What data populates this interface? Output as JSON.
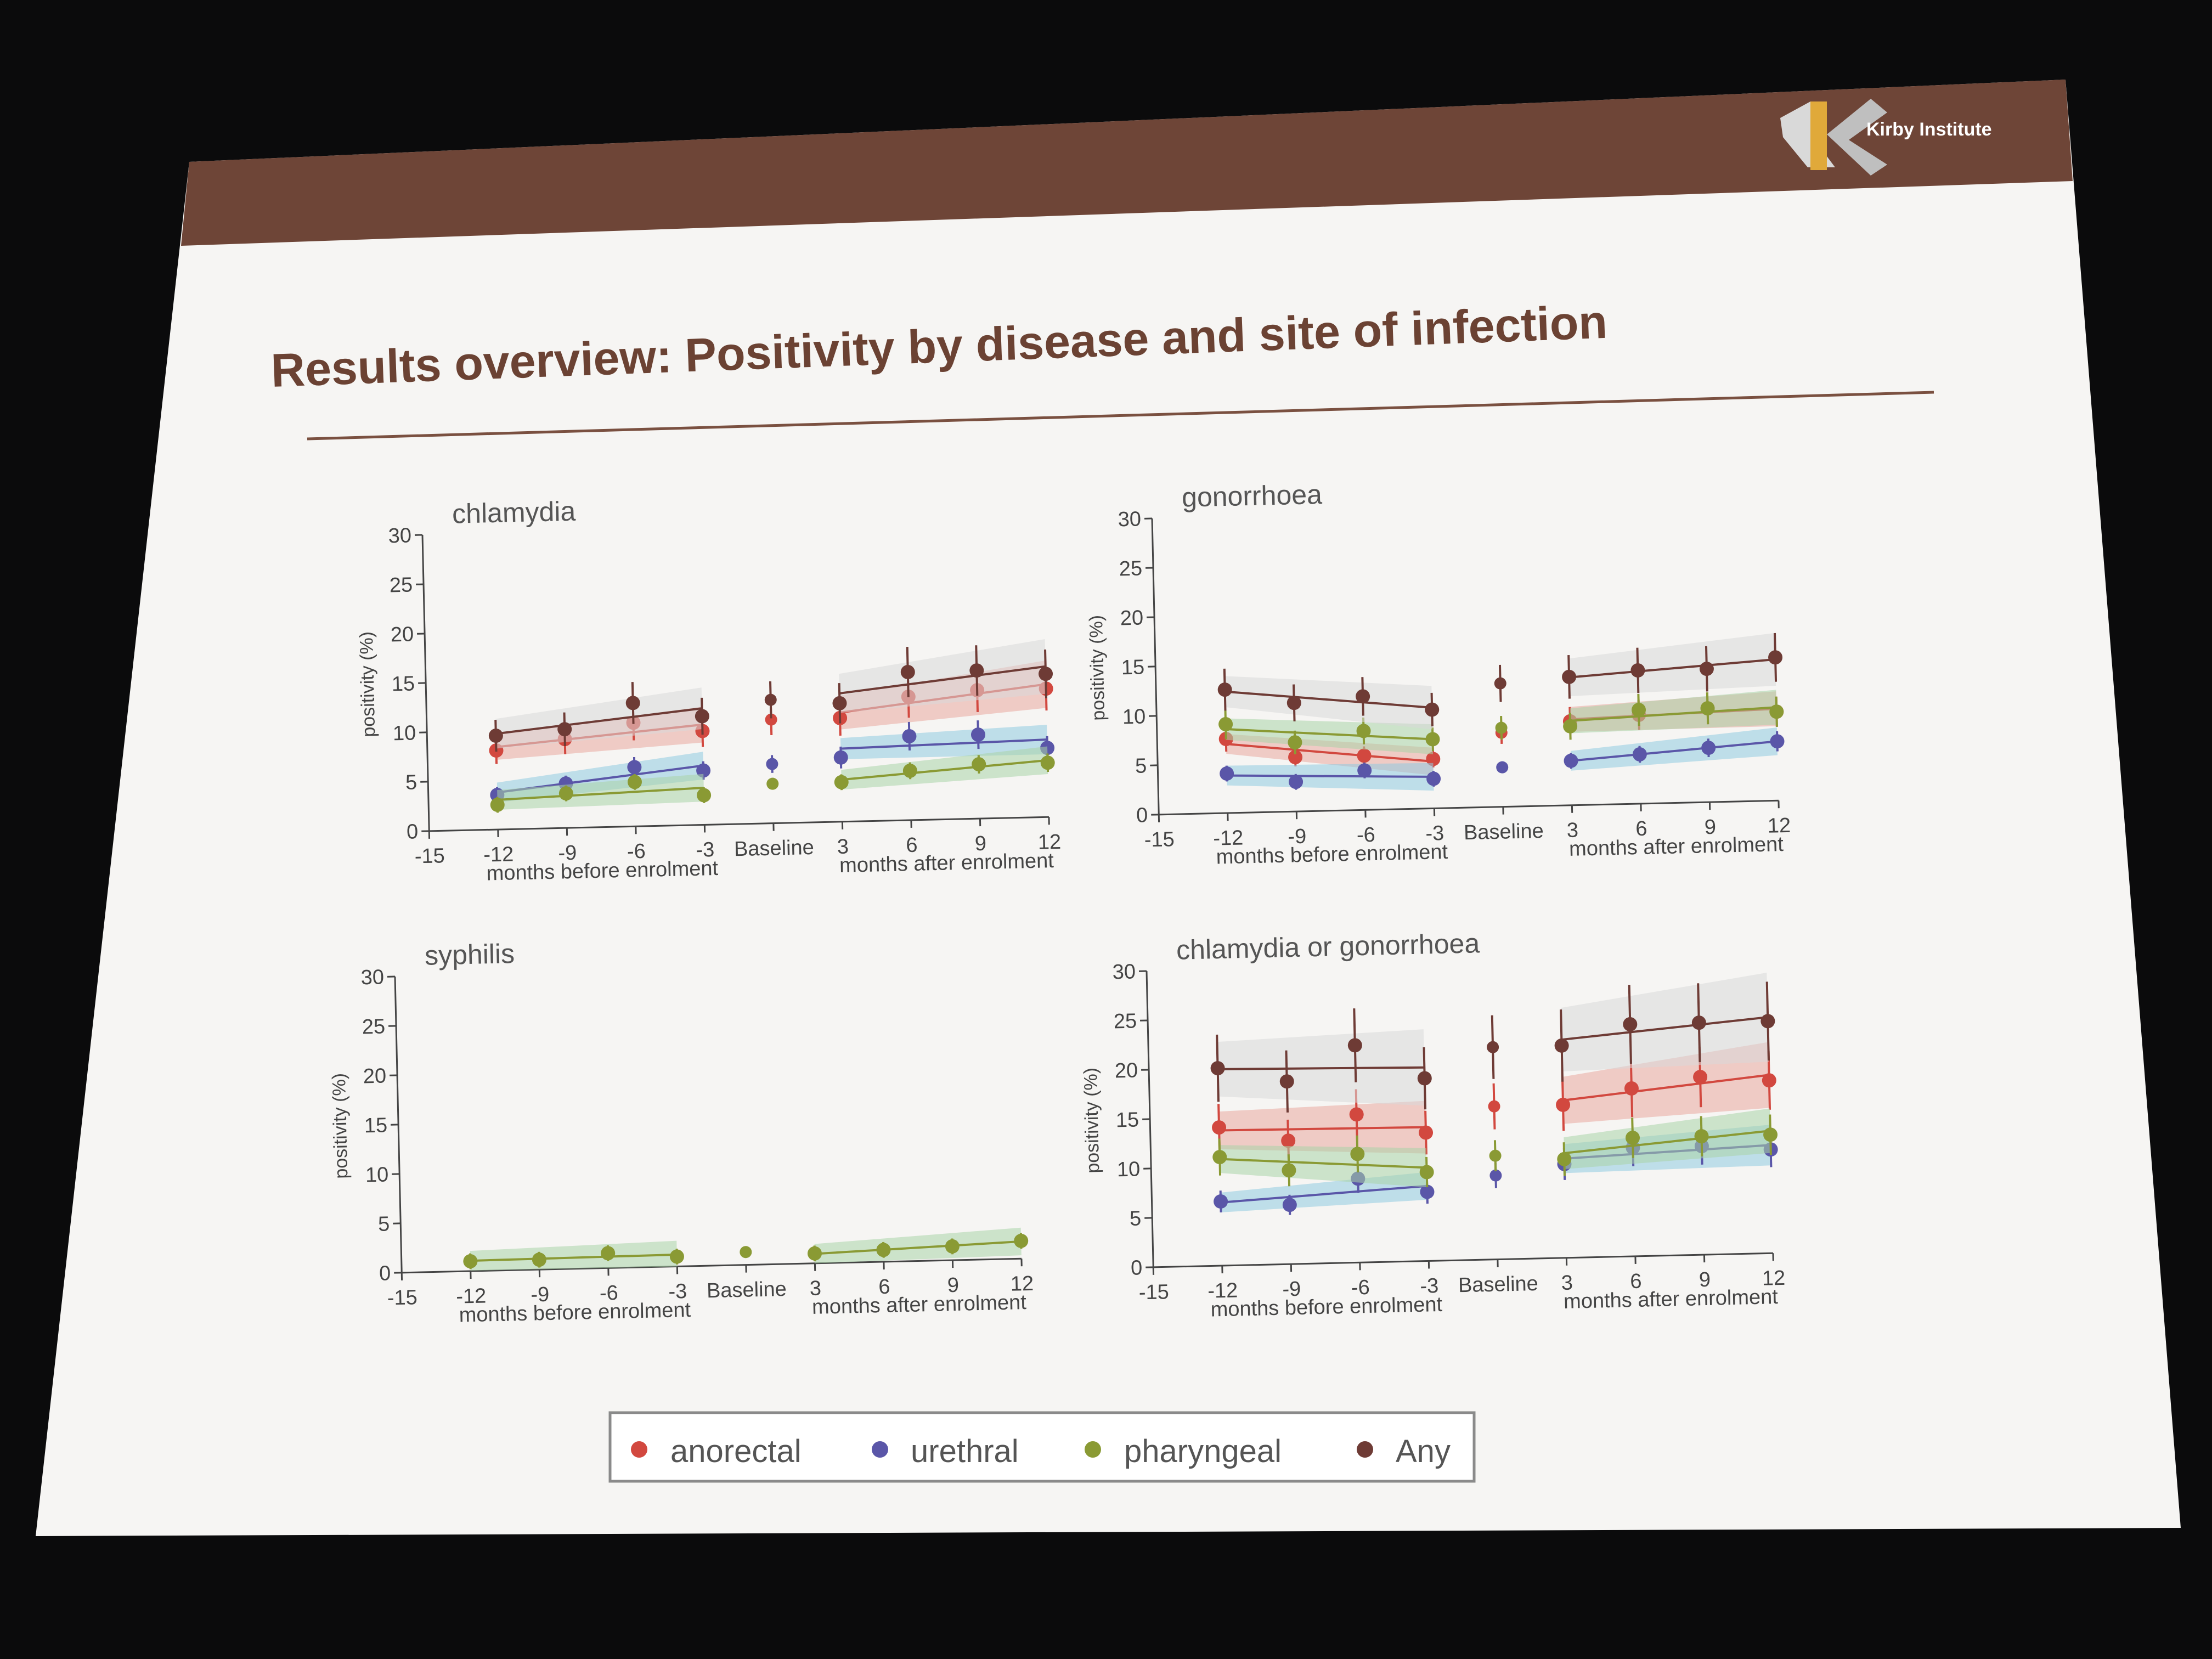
{
  "slide": {
    "title": "Results overview: Positivity by disease and site of infection",
    "logo_text": "Kirby Institute",
    "colors": {
      "header_band": "#6e4537",
      "title": "#6b4233",
      "slide_bg": "#f6f5f3",
      "room_bg": "#0b0b0c"
    }
  },
  "legend": [
    {
      "label": "anorectal",
      "color": "#d2483f"
    },
    {
      "label": "urethral",
      "color": "#5a56a8"
    },
    {
      "label": "pharyngeal",
      "color": "#8a9a34"
    },
    {
      "label": "Any",
      "color": "#6e3b35"
    }
  ],
  "axis_common": {
    "ylabel": "positivity (%)",
    "yticks": [
      0,
      5,
      10,
      15,
      20,
      25,
      30
    ],
    "xticks": [
      "-15",
      "-12",
      "-9",
      "-6",
      "-3",
      "Baseline",
      "3",
      "6",
      "9",
      "12"
    ],
    "before_label": "months before enrolment",
    "after_label": "months after enrolment"
  },
  "chart_data": [
    {
      "type": "line",
      "title": "chlamydia",
      "ylim": [
        0,
        30
      ],
      "x_before": [
        -12,
        -9,
        -6,
        -3
      ],
      "x_after": [
        3,
        6,
        9,
        12
      ],
      "series": [
        {
          "name": "anorectal",
          "before": [
            8,
            9,
            10.5,
            9.5
          ],
          "baseline": 10.5,
          "after": [
            10.5,
            12.5,
            13,
            13
          ]
        },
        {
          "name": "urethral",
          "before": [
            3.5,
            4.5,
            6,
            5.5
          ],
          "baseline": 6,
          "after": [
            6.5,
            8.5,
            8.5,
            7
          ]
        },
        {
          "name": "pharyngeal",
          "before": [
            2.5,
            3.5,
            4.5,
            3
          ],
          "baseline": 4,
          "after": [
            4,
            5,
            5.5,
            5.5
          ]
        },
        {
          "name": "Any",
          "before": [
            9.5,
            10,
            12.5,
            11
          ],
          "baseline": 12.5,
          "after": [
            12,
            15,
            15,
            14.5
          ]
        }
      ]
    },
    {
      "type": "line",
      "title": "gonorrhoea",
      "ylim": [
        0,
        30
      ],
      "x_before": [
        -12,
        -9,
        -6,
        -3
      ],
      "x_after": [
        3,
        6,
        9,
        12
      ],
      "series": [
        {
          "name": "anorectal",
          "before": [
            7.5,
            5.5,
            5.5,
            5
          ],
          "baseline": 7.5,
          "after": [
            8.5,
            9,
            9.5,
            9
          ]
        },
        {
          "name": "urethral",
          "before": [
            4,
            3,
            4,
            3
          ],
          "baseline": 4,
          "after": [
            4.5,
            5,
            5.5,
            6
          ]
        },
        {
          "name": "pharyngeal",
          "before": [
            9,
            7,
            8,
            7
          ],
          "baseline": 8,
          "after": [
            8,
            9.5,
            9.5,
            9
          ]
        },
        {
          "name": "Any",
          "before": [
            12.5,
            11,
            11.5,
            10
          ],
          "baseline": 12.5,
          "after": [
            13,
            13.5,
            13.5,
            14.5
          ]
        }
      ]
    },
    {
      "type": "line",
      "title": "syphilis",
      "ylim": [
        0,
        30
      ],
      "x_before": [
        -12,
        -9,
        -6,
        -3
      ],
      "x_after": [
        3,
        6,
        9,
        12
      ],
      "series": [
        {
          "name": "pharyngeal",
          "before": [
            1,
            1,
            1.5,
            1
          ],
          "baseline": 1.3,
          "after": [
            1,
            1.2,
            1.4,
            1.8
          ]
        }
      ]
    },
    {
      "type": "line",
      "title": "chlamydia or gonorrhoea",
      "ylim": [
        0,
        30
      ],
      "x_before": [
        -12,
        -9,
        -6,
        -3
      ],
      "x_after": [
        3,
        6,
        9,
        12
      ],
      "series": [
        {
          "name": "anorectal",
          "before": [
            14,
            12.5,
            15,
            13
          ],
          "baseline": 15.5,
          "after": [
            15.5,
            17,
            18,
            17.5
          ]
        },
        {
          "name": "urethral",
          "before": [
            6.5,
            6,
            8.5,
            7
          ],
          "baseline": 8.5,
          "after": [
            9.5,
            11,
            11,
            10.5
          ]
        },
        {
          "name": "pharyngeal",
          "before": [
            11,
            9.5,
            11,
            9
          ],
          "baseline": 10.5,
          "after": [
            10,
            12,
            12,
            12
          ]
        },
        {
          "name": "Any",
          "before": [
            20,
            18.5,
            22,
            18.5
          ],
          "baseline": 21.5,
          "after": [
            21.5,
            23.5,
            23.5,
            23.5
          ]
        }
      ]
    }
  ]
}
